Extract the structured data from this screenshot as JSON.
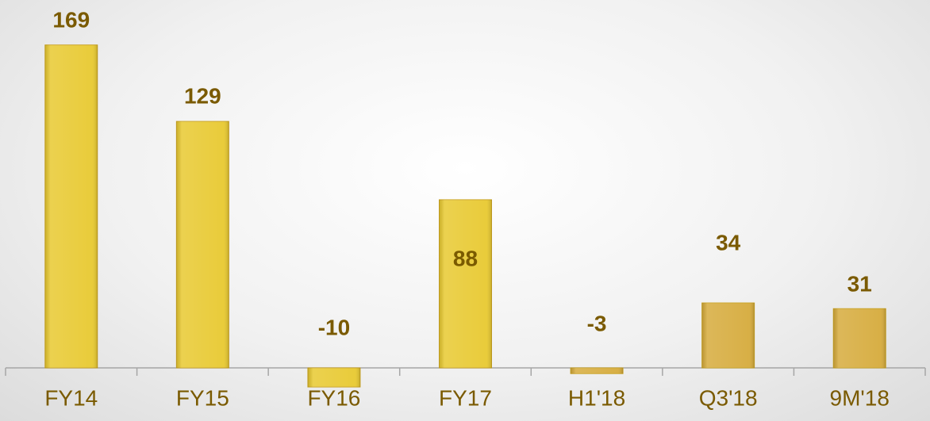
{
  "chart_data": {
    "type": "bar",
    "categories": [
      "FY14",
      "FY15",
      "FY16",
      "FY17",
      "H1'18",
      "Q3'18",
      "9M'18"
    ],
    "values": [
      169,
      129,
      -10,
      88,
      -3,
      34,
      31
    ],
    "colors": [
      "#e8c930",
      "#e8c930",
      "#e8c930",
      "#e8c930",
      "#d6ab3c",
      "#d6ab3c",
      "#d6ab3c"
    ],
    "label_color": "#7a5a00"
  }
}
